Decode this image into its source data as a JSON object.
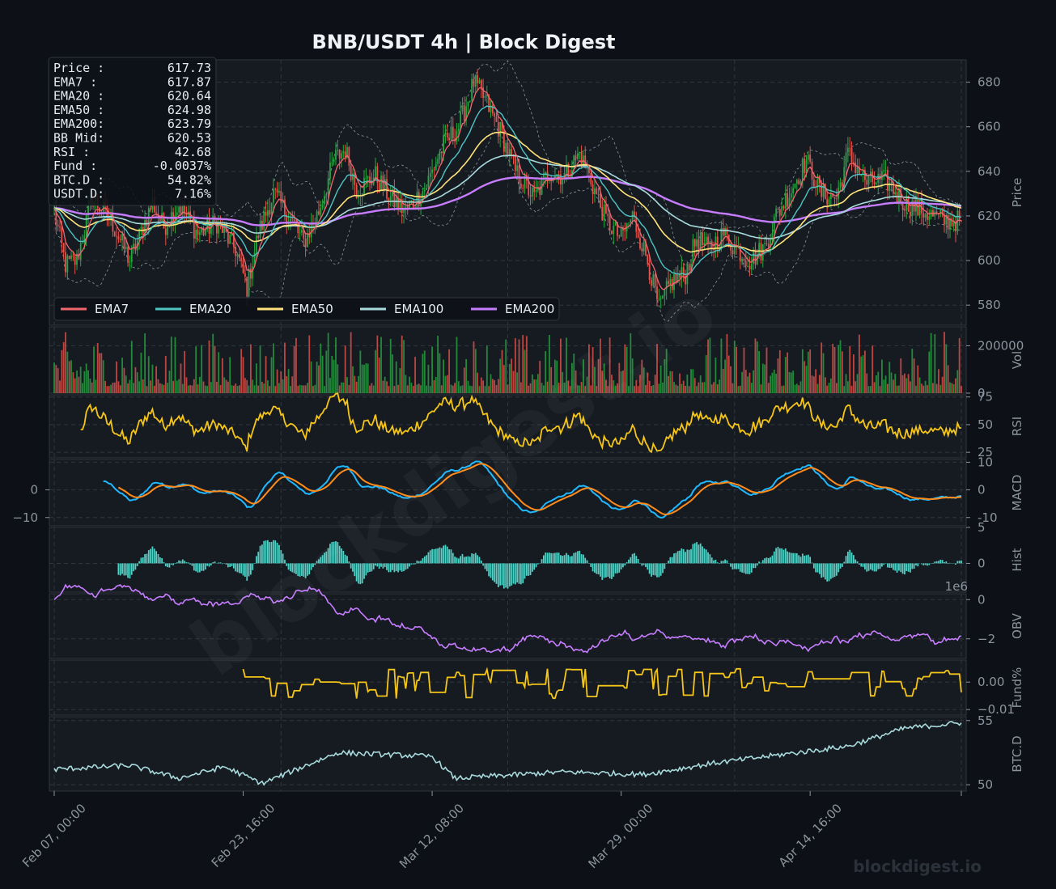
{
  "chart_data": {
    "type": "line",
    "title": "BNB/USDT  4h  |  Block Digest",
    "watermark": "blockdigest.io",
    "x_tick_labels": [
      "Feb 07, 00:00",
      "Feb 23, 16:00",
      "Mar 12, 08:00",
      "Mar 29, 00:00",
      "Apr 14, 16:00"
    ],
    "info_box": [
      {
        "label": "Price :",
        "value": "617.73"
      },
      {
        "label": "EMA7  :",
        "value": "617.87"
      },
      {
        "label": "EMA20 :",
        "value": "620.64"
      },
      {
        "label": "EMA50 :",
        "value": "624.98"
      },
      {
        "label": "EMA200:",
        "value": "623.79"
      },
      {
        "label": "BB Mid:",
        "value": "620.53"
      },
      {
        "label": "RSI   :",
        "value": "42.68"
      },
      {
        "label": "Fund  :",
        "value": "-0.0037%"
      },
      {
        "label": "BTC.D :",
        "value": "54.82%"
      },
      {
        "label": "USDT.D:",
        "value": "7.16%"
      }
    ],
    "legend": [
      {
        "name": "EMA7",
        "color": "#f0676e"
      },
      {
        "name": "EMA20",
        "color": "#4fc4c4"
      },
      {
        "name": "EMA50",
        "color": "#ffe27a"
      },
      {
        "name": "EMA100",
        "color": "#a8dadc"
      },
      {
        "name": "EMA200",
        "color": "#c77dff"
      }
    ],
    "colors": {
      "up": "#26a641",
      "down": "#e5534b",
      "rsi": "#f5c518",
      "macd": "#1fb8ff",
      "signal": "#ff8c1a",
      "hist": "#4fd1c5",
      "obv": "#c77dff",
      "fund": "#f5c518",
      "btcd": "#a8dadc",
      "bb": "#8b949e"
    },
    "panels": [
      {
        "key": "price",
        "ylabel": "Price",
        "ticks": [
          580,
          600,
          620,
          640,
          660,
          680
        ],
        "ylim": [
          571,
          690
        ]
      },
      {
        "key": "vol",
        "ylabel": "Vol",
        "ticks": [
          0,
          200000
        ],
        "tick_labels": [
          "0",
          "200000"
        ],
        "ylim": [
          0,
          280000
        ]
      },
      {
        "key": "rsi",
        "ylabel": "RSI",
        "ticks": [
          25,
          50,
          75
        ],
        "ylim": [
          20,
          77
        ]
      },
      {
        "key": "macd",
        "ylabel": "MACD",
        "ticks": [
          -10,
          0,
          10
        ],
        "ylim": [
          -13,
          11
        ],
        "left_ticks": [
          0,
          -10
        ]
      },
      {
        "key": "hist",
        "ylabel": "Hist",
        "ticks": [
          0,
          5
        ],
        "ylim": [
          -4,
          5
        ]
      },
      {
        "key": "obv",
        "ylabel": "OBV",
        "ticks": [
          -2,
          0
        ],
        "tick_labels": [
          "−2",
          "0"
        ],
        "ylim": [
          -3,
          0.3
        ],
        "offset_label": "1e6"
      },
      {
        "key": "fund",
        "ylabel": "Fund%",
        "ticks": [
          -0.01,
          0
        ],
        "tick_labels": [
          "−0.01",
          "0.00"
        ],
        "ylim": [
          -0.012,
          0.008
        ]
      },
      {
        "key": "btcd",
        "ylabel": "BTC.D",
        "ticks": [
          50,
          55
        ],
        "ylim": [
          49.5,
          55.3
        ]
      }
    ],
    "price_keyframes": [
      [
        0,
        622
      ],
      [
        6,
        598
      ],
      [
        12,
        600
      ],
      [
        20,
        628
      ],
      [
        30,
        618
      ],
      [
        40,
        600
      ],
      [
        52,
        626
      ],
      [
        58,
        615
      ],
      [
        66,
        625
      ],
      [
        76,
        612
      ],
      [
        86,
        617
      ],
      [
        96,
        605
      ],
      [
        102,
        588
      ],
      [
        108,
        612
      ],
      [
        116,
        630
      ],
      [
        124,
        620
      ],
      [
        132,
        608
      ],
      [
        140,
        622
      ],
      [
        148,
        645
      ],
      [
        154,
        650
      ],
      [
        160,
        632
      ],
      [
        170,
        638
      ],
      [
        178,
        628
      ],
      [
        186,
        622
      ],
      [
        196,
        632
      ],
      [
        206,
        652
      ],
      [
        214,
        660
      ],
      [
        222,
        680
      ],
      [
        228,
        672
      ],
      [
        236,
        658
      ],
      [
        244,
        640
      ],
      [
        254,
        628
      ],
      [
        262,
        640
      ],
      [
        270,
        638
      ],
      [
        278,
        648
      ],
      [
        284,
        636
      ],
      [
        292,
        618
      ],
      [
        300,
        610
      ],
      [
        306,
        620
      ],
      [
        314,
        600
      ],
      [
        320,
        578
      ],
      [
        326,
        590
      ],
      [
        334,
        594
      ],
      [
        340,
        610
      ],
      [
        346,
        605
      ],
      [
        354,
        612
      ],
      [
        360,
        606
      ],
      [
        368,
        600
      ],
      [
        376,
        606
      ],
      [
        382,
        620
      ],
      [
        390,
        632
      ],
      [
        398,
        645
      ],
      [
        406,
        630
      ],
      [
        414,
        628
      ],
      [
        420,
        648
      ],
      [
        430,
        635
      ],
      [
        440,
        636
      ],
      [
        450,
        626
      ],
      [
        460,
        622
      ],
      [
        470,
        618
      ],
      [
        480,
        617.73
      ]
    ],
    "volume_scale": 200000,
    "obv_end": -1.85,
    "btcd_keyframes": [
      [
        0,
        51.2
      ],
      [
        40,
        51.5
      ],
      [
        66,
        50.5
      ],
      [
        90,
        51.4
      ],
      [
        110,
        50.1
      ],
      [
        150,
        52.5
      ],
      [
        200,
        52.2
      ],
      [
        212,
        50.5
      ],
      [
        270,
        51.0
      ],
      [
        312,
        50.8
      ],
      [
        350,
        51.7
      ],
      [
        420,
        53.0
      ],
      [
        450,
        54.4
      ],
      [
        480,
        54.82
      ]
    ]
  }
}
